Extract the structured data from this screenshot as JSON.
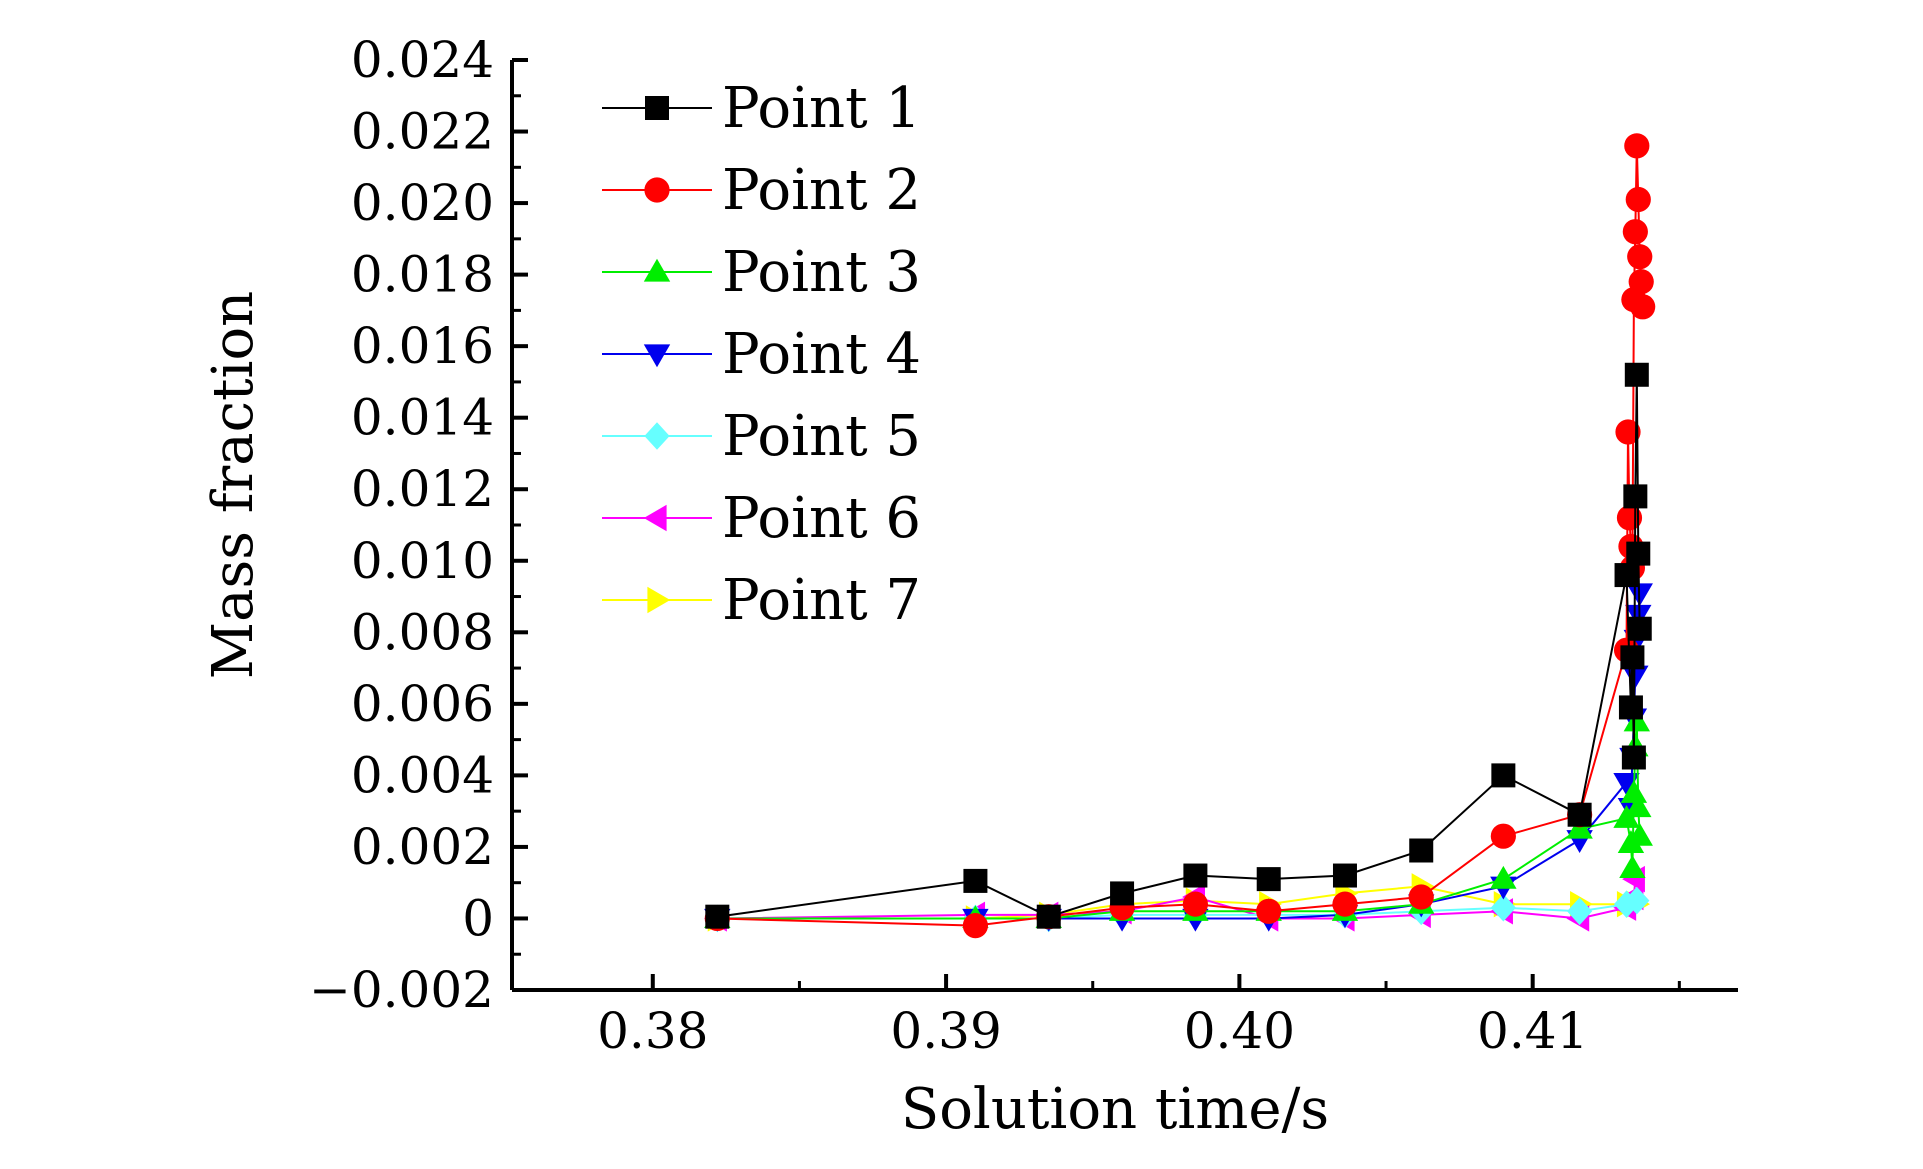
{
  "chart_data": {
    "type": "line",
    "title": "",
    "xlabel": "Solution time/s",
    "ylabel": "Mass fraction",
    "xlim": [
      0.3752,
      0.417
    ],
    "ylim": [
      -0.002,
      0.024
    ],
    "x_ticks": [
      0.38,
      0.39,
      0.4,
      0.41
    ],
    "x_tick_labels": [
      "0.38",
      "0.39",
      "0.40",
      "0.41"
    ],
    "y_ticks": [
      -0.002,
      0,
      0.002,
      0.004,
      0.006,
      0.008,
      0.01,
      0.012,
      0.014,
      0.016,
      0.018,
      0.02,
      0.022,
      0.024
    ],
    "y_tick_labels": [
      "−0.002",
      "0",
      "0.002",
      "0.004",
      "0.006",
      "0.008",
      "0.010",
      "0.012",
      "0.014",
      "0.016",
      "0.018",
      "0.020",
      "0.022",
      "0.024"
    ],
    "grid": false,
    "legend_position": "top-left",
    "series": [
      {
        "name": "Point 1",
        "color": "#000000",
        "marker": "square",
        "points": [
          [
            0.3822,
            5e-05
          ],
          [
            0.391,
            0.00105
          ],
          [
            0.3935,
            5e-05
          ],
          [
            0.396,
            0.0007
          ],
          [
            0.3985,
            0.0012
          ],
          [
            0.401,
            0.0011
          ],
          [
            0.4036,
            0.0012
          ],
          [
            0.4062,
            0.0019
          ],
          [
            0.409,
            0.004
          ],
          [
            0.4116,
            0.0029
          ],
          [
            0.4132,
            0.0096
          ],
          [
            0.41335,
            0.0059
          ],
          [
            0.4134,
            0.0073
          ],
          [
            0.41345,
            0.0045
          ],
          [
            0.4135,
            0.0118
          ],
          [
            0.41355,
            0.0152
          ],
          [
            0.4136,
            0.0102
          ],
          [
            0.41365,
            0.0081
          ]
        ]
      },
      {
        "name": "Point 2",
        "color": "#ff0000",
        "marker": "circle",
        "points": [
          [
            0.3822,
            0.0
          ],
          [
            0.391,
            -0.0002
          ],
          [
            0.3935,
            5e-05
          ],
          [
            0.396,
            0.0003
          ],
          [
            0.3985,
            0.0004
          ],
          [
            0.401,
            0.0002
          ],
          [
            0.4036,
            0.0004
          ],
          [
            0.4062,
            0.0006
          ],
          [
            0.409,
            0.0023
          ],
          [
            0.4116,
            0.0029
          ],
          [
            0.4132,
            0.0075
          ],
          [
            0.41325,
            0.0136
          ],
          [
            0.4133,
            0.0112
          ],
          [
            0.41335,
            0.0104
          ],
          [
            0.4134,
            0.0098
          ],
          [
            0.41345,
            0.0173
          ],
          [
            0.4135,
            0.0192
          ],
          [
            0.41355,
            0.0216
          ],
          [
            0.4136,
            0.0201
          ],
          [
            0.41365,
            0.0185
          ],
          [
            0.4137,
            0.0178
          ],
          [
            0.41375,
            0.0171
          ]
        ]
      },
      {
        "name": "Point 3",
        "color": "#00ee00",
        "marker": "triangle-up",
        "points": [
          [
            0.3822,
            0.0
          ],
          [
            0.391,
            0.0
          ],
          [
            0.3935,
            0.0
          ],
          [
            0.396,
            0.0002
          ],
          [
            0.3985,
            0.0002
          ],
          [
            0.401,
            0.0002
          ],
          [
            0.4036,
            0.0002
          ],
          [
            0.4062,
            0.0004
          ],
          [
            0.409,
            0.0011
          ],
          [
            0.4116,
            0.0025
          ],
          [
            0.4132,
            0.0028
          ],
          [
            0.41335,
            0.0021
          ],
          [
            0.4134,
            0.0014
          ],
          [
            0.41345,
            0.0035
          ],
          [
            0.4135,
            0.0048
          ],
          [
            0.41355,
            0.0055
          ],
          [
            0.4136,
            0.0031
          ],
          [
            0.41365,
            0.0023
          ]
        ]
      },
      {
        "name": "Point 4",
        "color": "#0000ee",
        "marker": "triangle-down",
        "points": [
          [
            0.3822,
            0.0
          ],
          [
            0.391,
            0.0
          ],
          [
            0.3935,
            0.0
          ],
          [
            0.396,
            0.0
          ],
          [
            0.3985,
            0.0
          ],
          [
            0.401,
            0.0
          ],
          [
            0.4036,
            0.0001
          ],
          [
            0.4062,
            0.0004
          ],
          [
            0.409,
            0.0009
          ],
          [
            0.4116,
            0.0022
          ],
          [
            0.4132,
            0.0038
          ],
          [
            0.41335,
            0.0031
          ],
          [
            0.4134,
            0.0045
          ],
          [
            0.41345,
            0.0056
          ],
          [
            0.4135,
            0.0068
          ],
          [
            0.41355,
            0.0078
          ],
          [
            0.4136,
            0.0085
          ],
          [
            0.41365,
            0.0091
          ]
        ]
      },
      {
        "name": "Point 5",
        "color": "#66ffff",
        "marker": "diamond",
        "points": [
          [
            0.3822,
            0.0
          ],
          [
            0.391,
            0.0
          ],
          [
            0.3935,
            0.0
          ],
          [
            0.396,
            0.0001
          ],
          [
            0.3985,
            0.0001
          ],
          [
            0.401,
            0.0001
          ],
          [
            0.4036,
            0.0001
          ],
          [
            0.4062,
            0.0002
          ],
          [
            0.409,
            0.0003
          ],
          [
            0.4116,
            0.0002
          ],
          [
            0.4132,
            0.0004
          ],
          [
            0.41355,
            0.0005
          ]
        ]
      },
      {
        "name": "Point 6",
        "color": "#ff00ff",
        "marker": "triangle-left",
        "points": [
          [
            0.3822,
            0.0
          ],
          [
            0.391,
            0.0001
          ],
          [
            0.3935,
            0.0001
          ],
          [
            0.396,
            0.0002
          ],
          [
            0.3985,
            0.0006
          ],
          [
            0.401,
            0.0
          ],
          [
            0.4036,
            0.0
          ],
          [
            0.4062,
            0.0001
          ],
          [
            0.409,
            0.0002
          ],
          [
            0.4116,
            0.0
          ],
          [
            0.4132,
            0.0003
          ],
          [
            0.41345,
            0.0006
          ],
          [
            0.4135,
            0.0011
          ]
        ]
      },
      {
        "name": "Point 7",
        "color": "#ffff00",
        "marker": "triangle-right",
        "points": [
          [
            0.3822,
            0.0
          ],
          [
            0.391,
            0.0
          ],
          [
            0.3935,
            0.0001
          ],
          [
            0.396,
            0.0004
          ],
          [
            0.3985,
            0.0005
          ],
          [
            0.401,
            0.0004
          ],
          [
            0.4036,
            0.0007
          ],
          [
            0.4062,
            0.0009
          ],
          [
            0.409,
            0.0004
          ],
          [
            0.4116,
            0.0004
          ],
          [
            0.4132,
            0.0004
          ],
          [
            0.41355,
            0.0004
          ]
        ]
      }
    ]
  }
}
